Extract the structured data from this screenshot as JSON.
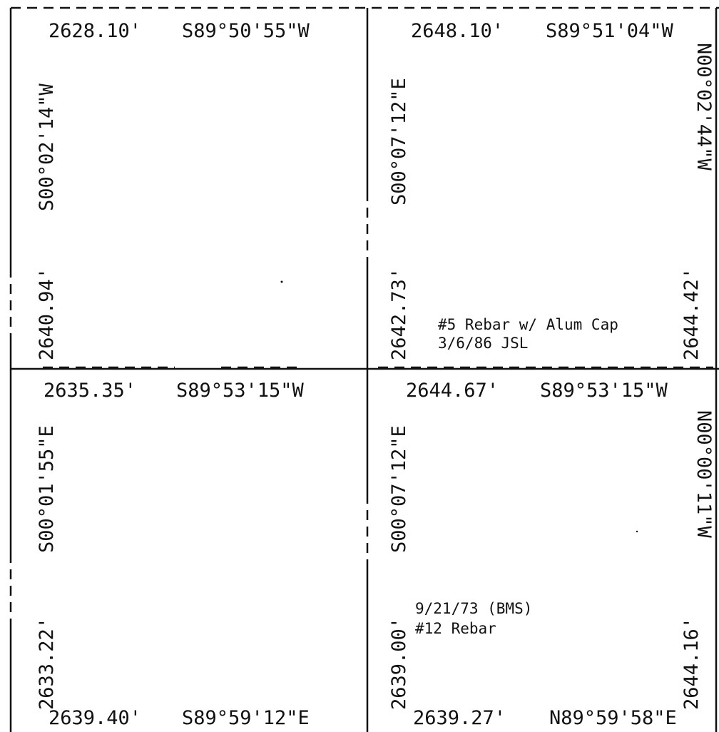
{
  "quarters": {
    "nw": {
      "north": {
        "distance": "2628.10'",
        "bearing": "S89°50'55\"W"
      },
      "west": {
        "bearing": "S00°02'14\"W",
        "distance": "2640.94'"
      }
    },
    "ne": {
      "north": {
        "distance": "2648.10'",
        "bearing": "S89°51'04\"W"
      },
      "west": {
        "bearing": "S00°07'12\"E",
        "distance": "2642.73'"
      },
      "east": {
        "bearing": "N00°02'44\"W",
        "distance": "2644.42'"
      },
      "monument_line1": "#5 Rebar w/ Alum Cap",
      "monument_line2": "3/6/86  JSL"
    },
    "sw": {
      "north": {
        "distance": "2635.35'",
        "bearing": "S89°53'15\"W"
      },
      "west": {
        "bearing": "S00°01'55\"E",
        "distance": "2633.22'"
      },
      "south": {
        "distance": "2639.40'",
        "bearing": "S89°59'12\"E"
      }
    },
    "se": {
      "north": {
        "distance": "2644.67'",
        "bearing": "S89°53'15\"W"
      },
      "west": {
        "bearing": "S00°07'12\"E",
        "distance": "2639.00'"
      },
      "east": {
        "bearing": "N00°00'11\"W",
        "distance": "2644.16'"
      },
      "south": {
        "distance": "2639.27'",
        "bearing": "N89°59'58\"E"
      },
      "monument_line1": "9/21/73 (BMS)",
      "monument_line2": "#12 Rebar"
    }
  }
}
